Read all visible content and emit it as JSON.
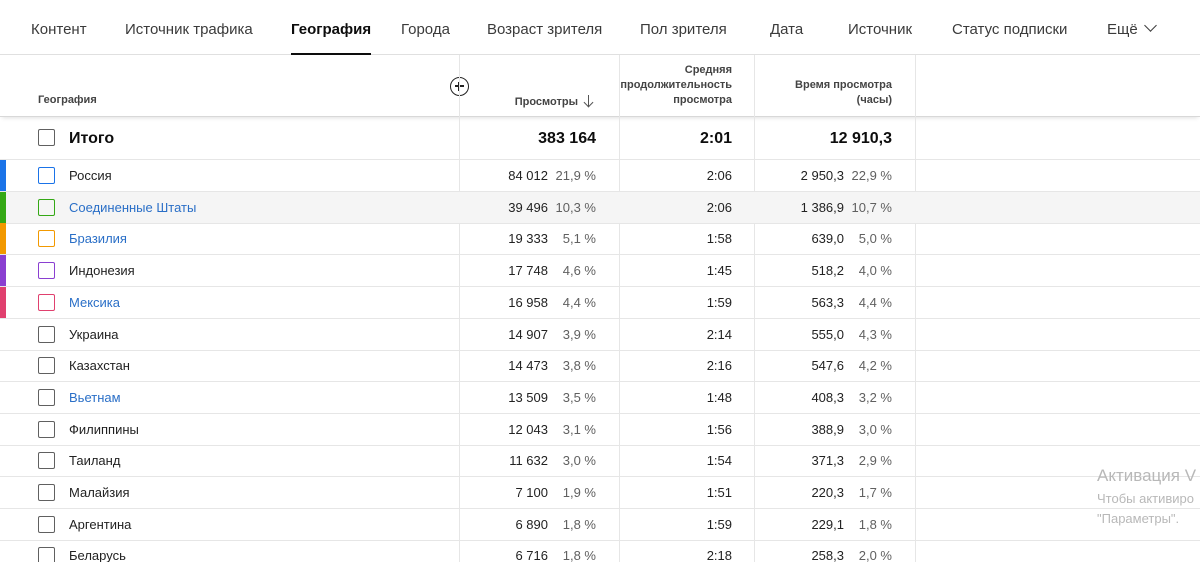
{
  "tabs": [
    {
      "label": "Контент",
      "active": false
    },
    {
      "label": "Источник трафика",
      "active": false
    },
    {
      "label": "География",
      "active": true
    },
    {
      "label": "Города",
      "active": false
    },
    {
      "label": "Возраст зрителя",
      "active": false
    },
    {
      "label": "Пол зрителя",
      "active": false
    },
    {
      "label": "Дата",
      "active": false
    },
    {
      "label": "Источник",
      "active": false
    },
    {
      "label": "Статус подписки",
      "active": false
    },
    {
      "label": "Ещё",
      "active": false
    }
  ],
  "columns": {
    "dimension": "География",
    "views": "Просмотры",
    "avg_duration": "Средняя продолжительность просмотра",
    "watch_time": "Время просмотра (часы)"
  },
  "total": {
    "label": "Итого",
    "views": "383 164",
    "avg_duration": "2:01",
    "watch_time": "12 910,3"
  },
  "rows": [
    {
      "name": "Россия",
      "link": false,
      "color": "#1a73e8",
      "views": "84 012",
      "views_pct": "21,9 %",
      "avg_duration": "2:06",
      "watch_time": "2 950,3",
      "watch_pct": "22,9 %"
    },
    {
      "name": "Соединенные Штаты",
      "link": true,
      "color": "#34a815",
      "views": "39 496",
      "views_pct": "10,3 %",
      "avg_duration": "2:06",
      "watch_time": "1 386,9",
      "watch_pct": "10,7 %"
    },
    {
      "name": "Бразилия",
      "link": true,
      "color": "#f29900",
      "views": "19 333",
      "views_pct": "5,1 %",
      "avg_duration": "1:58",
      "watch_time": "639,0",
      "watch_pct": "5,0 %"
    },
    {
      "name": "Индонезия",
      "link": false,
      "color": "#8a3fd1",
      "views": "17 748",
      "views_pct": "4,6 %",
      "avg_duration": "1:45",
      "watch_time": "518,2",
      "watch_pct": "4,0 %"
    },
    {
      "name": "Мексика",
      "link": true,
      "color": "#e0406e",
      "views": "16 958",
      "views_pct": "4,4 %",
      "avg_duration": "1:59",
      "watch_time": "563,3",
      "watch_pct": "4,4 %"
    },
    {
      "name": "Украина",
      "link": false,
      "color": "",
      "views": "14 907",
      "views_pct": "3,9 %",
      "avg_duration": "2:14",
      "watch_time": "555,0",
      "watch_pct": "4,3 %"
    },
    {
      "name": "Казахстан",
      "link": false,
      "color": "",
      "views": "14 473",
      "views_pct": "3,8 %",
      "avg_duration": "2:16",
      "watch_time": "547,6",
      "watch_pct": "4,2 %"
    },
    {
      "name": "Вьетнам",
      "link": true,
      "color": "",
      "views": "13 509",
      "views_pct": "3,5 %",
      "avg_duration": "1:48",
      "watch_time": "408,3",
      "watch_pct": "3,2 %"
    },
    {
      "name": "Филиппины",
      "link": false,
      "color": "",
      "views": "12 043",
      "views_pct": "3,1 %",
      "avg_duration": "1:56",
      "watch_time": "388,9",
      "watch_pct": "3,0 %"
    },
    {
      "name": "Таиланд",
      "link": false,
      "color": "",
      "views": "11 632",
      "views_pct": "3,0 %",
      "avg_duration": "1:54",
      "watch_time": "371,3",
      "watch_pct": "2,9 %"
    },
    {
      "name": "Малайзия",
      "link": false,
      "color": "",
      "views": "7 100",
      "views_pct": "1,9 %",
      "avg_duration": "1:51",
      "watch_time": "220,3",
      "watch_pct": "1,7 %"
    },
    {
      "name": "Аргентина",
      "link": false,
      "color": "",
      "views": "6 890",
      "views_pct": "1,8 %",
      "avg_duration": "1:59",
      "watch_time": "229,1",
      "watch_pct": "1,8 %"
    },
    {
      "name": "Беларусь",
      "link": false,
      "color": "",
      "views": "6 716",
      "views_pct": "1,8 %",
      "avg_duration": "2:18",
      "watch_time": "258,3",
      "watch_pct": "2,0 %"
    }
  ],
  "watermark": {
    "title": "Активация V",
    "line1": "Чтобы активиро",
    "line2": "\"Параметры\"."
  }
}
